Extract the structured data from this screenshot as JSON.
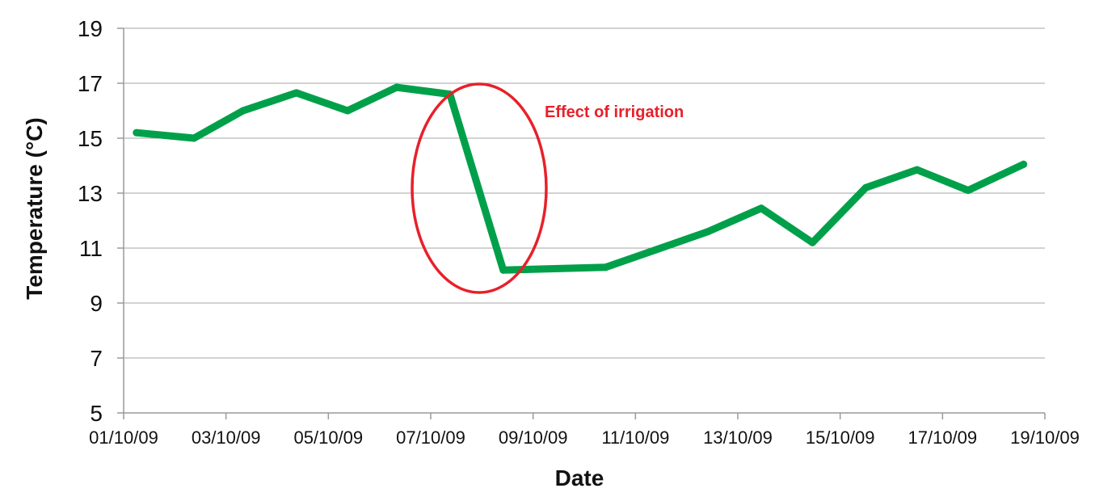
{
  "chart_data": {
    "type": "line",
    "title": "",
    "xlabel": "Date",
    "ylabel": "Temperature (°C)",
    "ylim": [
      5,
      19
    ],
    "xlim": [
      "2009-10-01",
      "2009-10-19"
    ],
    "grid": true,
    "yticks": [
      "5",
      "7",
      "9",
      "11",
      "13",
      "15",
      "17",
      "19"
    ],
    "xticks": [
      "01/10/09",
      "03/10/09",
      "05/10/09",
      "07/10/09",
      "09/10/09",
      "11/10/09",
      "13/10/09",
      "15/10/09",
      "17/10/09",
      "19/10/09"
    ],
    "series": [
      {
        "color": "#00a04a",
        "x": [
          "2009-10-01T06:00",
          "2009-10-02T09:00",
          "2009-10-03T08:00",
          "2009-10-04T09:00",
          "2009-10-05T09:00",
          "2009-10-06T08:00",
          "2009-10-07T09:00",
          "2009-10-08T10:00",
          "2009-10-09T10:00",
          "2009-10-10T10:00",
          "2009-10-11T10:00",
          "2009-10-12T10:00",
          "2009-10-13T11:00",
          "2009-10-14T11:00",
          "2009-10-15T12:00",
          "2009-10-16T12:00",
          "2009-10-17T12:00",
          "2009-10-18T14:00"
        ],
        "y": [
          15.2,
          15.0,
          16.0,
          16.65,
          16.0,
          16.85,
          16.6,
          10.2,
          10.25,
          10.3,
          10.95,
          11.6,
          12.45,
          11.2,
          13.2,
          13.85,
          13.1,
          14.05
        ]
      }
    ],
    "annotation": {
      "text": "Effect of irrigation",
      "color": "#e8202a",
      "shape": "ellipse",
      "around": [
        "2009-10-07",
        "2009-10-09"
      ]
    }
  }
}
